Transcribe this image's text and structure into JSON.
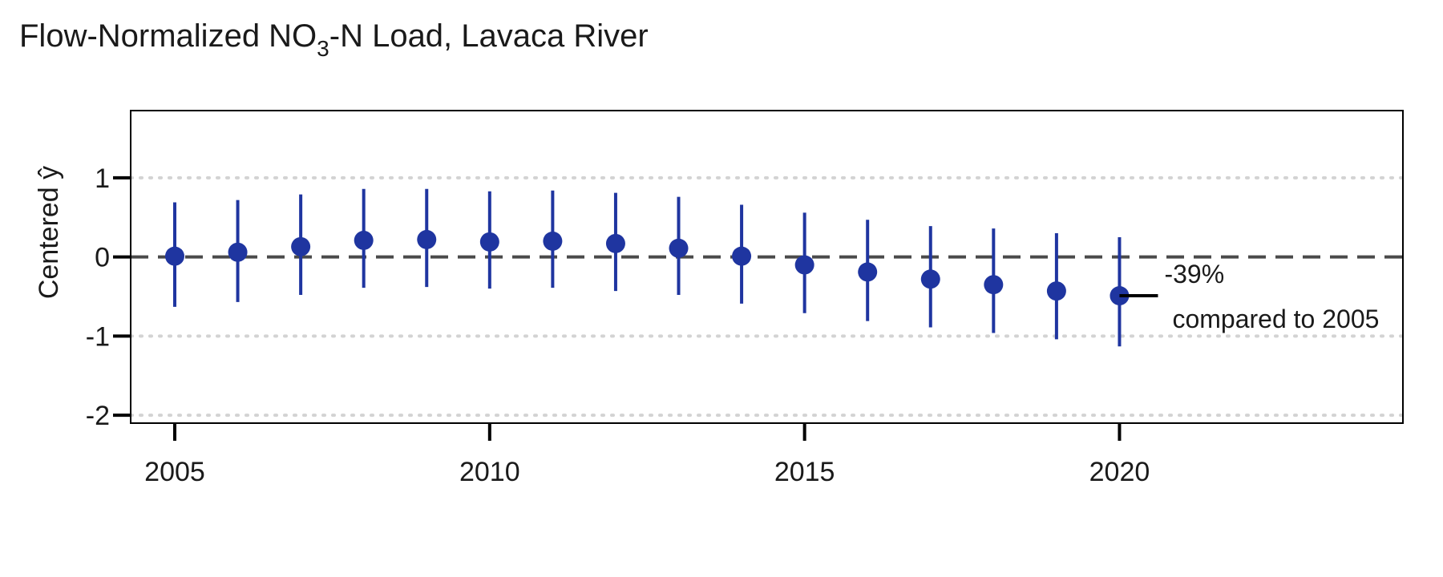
{
  "chart_data": {
    "type": "scatter",
    "title_main": "Flow-Normalized NO",
    "title_sub": "3",
    "title_tail": "-N Load, Lavaca River",
    "ylabel": "Centered ",
    "ylabel_symbol": "ŷ",
    "xlabel": "",
    "xlim": [
      2004.3,
      2024.5
    ],
    "ylim": [
      -2.1,
      1.85
    ],
    "x_ticks": [
      2005,
      2010,
      2015,
      2020
    ],
    "x_tick_labels": [
      "2005",
      "2010",
      "2015",
      "2020"
    ],
    "y_ticks": [
      1,
      0,
      -1,
      -2
    ],
    "y_tick_labels": [
      "1",
      "0",
      "-1",
      "-2"
    ],
    "dotted_gridlines_y": [
      1,
      -1,
      -2
    ],
    "dashed_reference_y": 0,
    "series": [
      {
        "x": [
          2005,
          2006,
          2007,
          2008,
          2009,
          2010,
          2011,
          2012,
          2013,
          2014,
          2015,
          2016,
          2017,
          2018,
          2019,
          2020
        ],
        "y": [
          0.01,
          0.06,
          0.13,
          0.21,
          0.22,
          0.19,
          0.2,
          0.17,
          0.11,
          0.01,
          -0.1,
          -0.19,
          -0.28,
          -0.35,
          -0.43,
          -0.49
        ],
        "lower": [
          -0.63,
          -0.57,
          -0.48,
          -0.39,
          -0.38,
          -0.4,
          -0.39,
          -0.43,
          -0.48,
          -0.59,
          -0.71,
          -0.81,
          -0.89,
          -0.96,
          -1.04,
          -1.13
        ],
        "upper": [
          0.69,
          0.72,
          0.79,
          0.86,
          0.86,
          0.83,
          0.84,
          0.81,
          0.76,
          0.66,
          0.56,
          0.47,
          0.39,
          0.36,
          0.3,
          0.25
        ]
      }
    ],
    "annotation": {
      "x": 2020,
      "y": -0.49,
      "line1": "-39%",
      "line2": "compared to 2005"
    },
    "colors": {
      "points": "#1f35a0",
      "reference_line": "#4a4a4a",
      "gridlines": "#d3d3d3",
      "axis": "#000000"
    }
  }
}
